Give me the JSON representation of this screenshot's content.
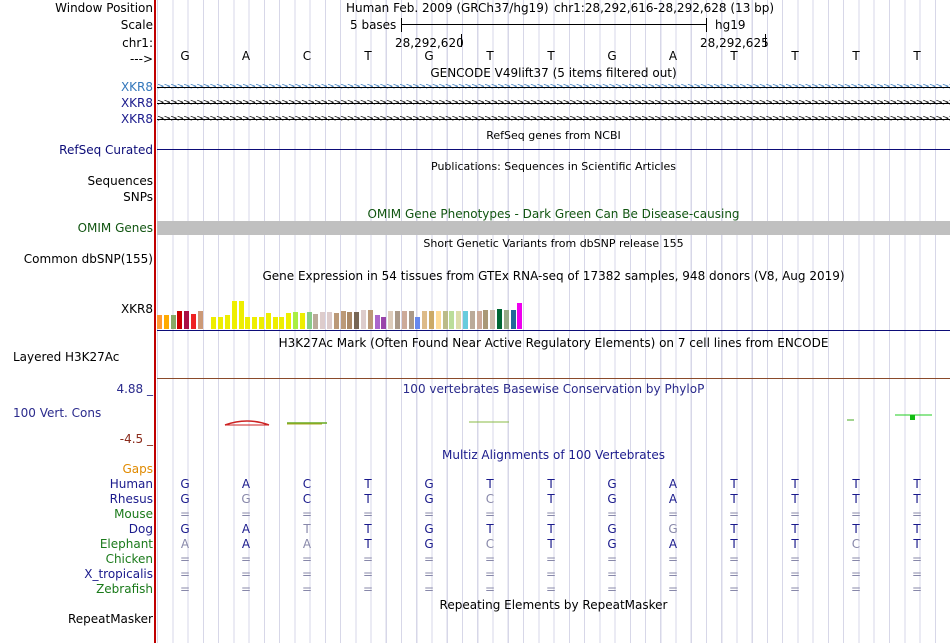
{
  "header": {
    "window_position_label": "Window Position",
    "scale_label": "Scale",
    "chrom_label": "chr1:",
    "strand_label": "--->",
    "assembly": "Human Feb. 2009 (GRCh37/hg19)",
    "position": "chr1:28,292,616-28,292,628 (13 bp)",
    "scale_text": "5 bases",
    "scale_db": "hg19",
    "coord_left": "28,292,620",
    "coord_right": "28,292,625"
  },
  "sequence": [
    "G",
    "A",
    "C",
    "T",
    "G",
    "T",
    "T",
    "G",
    "A",
    "T",
    "T",
    "T",
    "T"
  ],
  "gencode": {
    "title": "GENCODE V49lift37 (5 items filtered out)",
    "rows": [
      "XKR8",
      "XKR8",
      "XKR8"
    ],
    "arrow_glyphs": ">>>>>>>>>>>>>>>>>>>>>>>>>>>>>>>>>>>>>>>>>>>>>>>>>>>>>>>>>>>>>>>>>>>>>>>>>>>>>>>>>>>>>>>>>>>>>>>>>>>>>>>>>>>>>>>>>>>>>>>>>>>>>>>>>>>>>>>>>>>>>>>>>>>>>>>>>>>>>>>>>>>>>>>>>>>>>"
  },
  "refseq": {
    "title": "RefSeq genes from NCBI",
    "label": "RefSeq Curated"
  },
  "publications": {
    "title": "Publications: Sequences in Scientific Articles",
    "label1": "Sequences",
    "label2": "SNPs"
  },
  "omim": {
    "title": "OMIM Gene Phenotypes - Dark Green Can Be Disease-causing",
    "label": "OMIM Genes"
  },
  "dbsnp": {
    "title": "Short Genetic Variants from dbSNP release 155",
    "label": "Common dbSNP(155)"
  },
  "gtex": {
    "title": "Gene Expression in 54 tissues from GTEx RNA-seq of 17382 samples, 948 donors (V8, Aug 2019)",
    "label": "XKR8",
    "bars": [
      {
        "c": "#ff9933",
        "v": 0.42
      },
      {
        "c": "#ffaa00",
        "v": 0.42
      },
      {
        "c": "#88aa66",
        "v": 0.42
      },
      {
        "c": "#cc0000",
        "v": 0.56
      },
      {
        "c": "#aa1144",
        "v": 0.58
      },
      {
        "c": "#ee2222",
        "v": 0.48
      },
      {
        "c": "#cc9977",
        "v": 0.56
      },
      {
        "c": "#ffffff",
        "v": 0.0
      },
      {
        "c": "#eeee00",
        "v": 0.38
      },
      {
        "c": "#eeee00",
        "v": 0.38
      },
      {
        "c": "#eeee00",
        "v": 0.42
      },
      {
        "c": "#eeee00",
        "v": 0.9
      },
      {
        "c": "#eeee00",
        "v": 0.9
      },
      {
        "c": "#eeee00",
        "v": 0.38
      },
      {
        "c": "#eeee00",
        "v": 0.38
      },
      {
        "c": "#eeee00",
        "v": 0.38
      },
      {
        "c": "#eeee00",
        "v": 0.5
      },
      {
        "c": "#eeee00",
        "v": 0.38
      },
      {
        "c": "#eeee00",
        "v": 0.38
      },
      {
        "c": "#eeee00",
        "v": 0.5
      },
      {
        "c": "#aaee44",
        "v": 0.52
      },
      {
        "c": "#eeee00",
        "v": 0.5
      },
      {
        "c": "#88cc88",
        "v": 0.52
      },
      {
        "c": "#bbaa99",
        "v": 0.48
      },
      {
        "c": "#ddcccc",
        "v": 0.54
      },
      {
        "c": "#ddcccc",
        "v": 0.54
      },
      {
        "c": "#bb9977",
        "v": 0.5
      },
      {
        "c": "#bb9977",
        "v": 0.56
      },
      {
        "c": "#aa8866",
        "v": 0.54
      },
      {
        "c": "#776655",
        "v": 0.54
      },
      {
        "c": "#ddcccc",
        "v": 0.6
      },
      {
        "c": "#bb9977",
        "v": 0.6
      },
      {
        "c": "#aa66cc",
        "v": 0.42
      },
      {
        "c": "#9944aa",
        "v": 0.36
      },
      {
        "c": "#ddccbb",
        "v": 0.56
      },
      {
        "c": "#aa9988",
        "v": 0.56
      },
      {
        "c": "#ccaa99",
        "v": 0.58
      },
      {
        "c": "#aa9988",
        "v": 0.58
      },
      {
        "c": "#6688ee",
        "v": 0.38
      },
      {
        "c": "#ddbb88",
        "v": 0.56
      },
      {
        "c": "#ccaa66",
        "v": 0.58
      },
      {
        "c": "#ffdd99",
        "v": 0.56
      },
      {
        "c": "#bbbb88",
        "v": 0.58
      },
      {
        "c": "#bbdd99",
        "v": 0.56
      },
      {
        "c": "#ddddaa",
        "v": 0.56
      },
      {
        "c": "#66ccdd",
        "v": 0.58
      },
      {
        "c": "#bbaa99",
        "v": 0.58
      },
      {
        "c": "#ccaa99",
        "v": 0.56
      },
      {
        "c": "#aa9977",
        "v": 0.6
      },
      {
        "c": "#ccbbaa",
        "v": 0.6
      },
      {
        "c": "#006633",
        "v": 0.64
      },
      {
        "c": "#99aa88",
        "v": 0.6
      },
      {
        "c": "#226699",
        "v": 0.6
      },
      {
        "c": "#ee00ee",
        "v": 0.84
      }
    ]
  },
  "h3k27ac": {
    "title": "H3K27Ac Mark (Often Found Near Active Regulatory Elements) on 7 cell lines from ENCODE",
    "label": "Layered H3K27Ac"
  },
  "phylop": {
    "title": "100 vertebrates Basewise Conservation by PhyloP",
    "label": "100 Vert. Cons",
    "max": "4.88 _",
    "min": "-4.5 _"
  },
  "multiz": {
    "title": "Multiz Alignments of 100 Vertebrates",
    "gaps_label": "Gaps",
    "species": [
      {
        "name": "Human",
        "color": "#1a1a8c",
        "seq": [
          "G",
          "A",
          "C",
          "T",
          "G",
          "T",
          "T",
          "G",
          "A",
          "T",
          "T",
          "T",
          "T"
        ],
        "grey": []
      },
      {
        "name": "Rhesus",
        "color": "#1a1a8c",
        "seq": [
          "G",
          "G",
          "C",
          "T",
          "G",
          "C",
          "T",
          "G",
          "A",
          "T",
          "T",
          "T",
          "T"
        ],
        "grey": [
          1,
          5
        ]
      },
      {
        "name": "Mouse",
        "color": "#1a7a1a",
        "seq": [
          "=",
          "=",
          "=",
          "=",
          "=",
          "=",
          "=",
          "=",
          "=",
          "=",
          "=",
          "=",
          "="
        ],
        "grey": []
      },
      {
        "name": "Dog",
        "color": "#1a1a8c",
        "seq": [
          "G",
          "A",
          "T",
          "T",
          "G",
          "T",
          "T",
          "G",
          "G",
          "T",
          "T",
          "T",
          "T"
        ],
        "grey": [
          2,
          8
        ]
      },
      {
        "name": "Elephant",
        "color": "#1a7a1a",
        "seq": [
          "A",
          "A",
          "A",
          "T",
          "G",
          "C",
          "T",
          "G",
          "A",
          "T",
          "T",
          "C",
          "T"
        ],
        "grey": [
          0,
          2,
          5,
          11
        ]
      },
      {
        "name": "Chicken",
        "color": "#1a7a1a",
        "seq": [
          "=",
          "=",
          "=",
          "=",
          "=",
          "=",
          "=",
          "=",
          "=",
          "=",
          "=",
          "=",
          "="
        ],
        "grey": []
      },
      {
        "name": "X_tropicalis",
        "color": "#1a1a8c",
        "seq": [
          "=",
          "=",
          "=",
          "=",
          "=",
          "=",
          "=",
          "=",
          "=",
          "=",
          "=",
          "=",
          "="
        ],
        "grey": []
      },
      {
        "name": "Zebrafish",
        "color": "#1a7a1a",
        "seq": [
          "=",
          "=",
          "=",
          "=",
          "=",
          "=",
          "=",
          "=",
          "=",
          "=",
          "=",
          "=",
          "="
        ],
        "grey": []
      }
    ]
  },
  "repeatmasker": {
    "title": "Repeating Elements by RepeatMasker",
    "label": "RepeatMasker"
  },
  "colors": {
    "gencode_blue": "#3377bb",
    "refseq_navy": "#0c0c78",
    "omim_green": "#115511",
    "omim_bar": "#c0c0c0",
    "phylop_blue": "#2a2a8c",
    "gaps_orange": "#e08a00"
  }
}
